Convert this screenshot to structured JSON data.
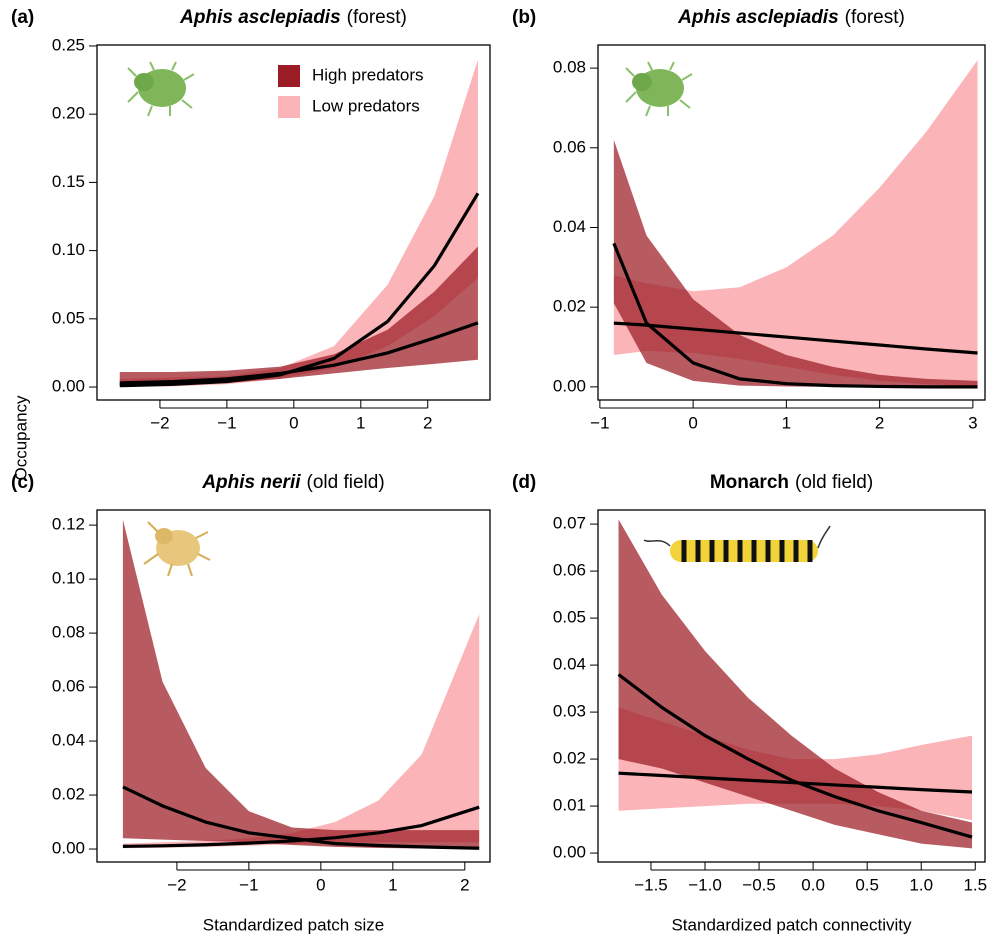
{
  "y_label": "Occupancy",
  "chart_data": [
    {
      "type": "band",
      "panel_label": "(a)",
      "title": {
        "species": "Aphis asclepiadis",
        "habitat": "(forest)"
      },
      "title_italic": true,
      "legend": "top-right",
      "band_opacity": 0.72,
      "x": [
        -2.6,
        -1.8,
        -1,
        -0.2,
        0.6,
        1.4,
        2.1,
        2.75
      ],
      "series": [
        {
          "name": "Low predators",
          "color": "#fbb4b8",
          "values": [
            0.001,
            0.002,
            0.004,
            0.009,
            0.021,
            0.048,
            0.089,
            0.142
          ],
          "lower": [
            0.0002,
            0.0005,
            0.002,
            0.006,
            0.014,
            0.03,
            0.052,
            0.08
          ],
          "upper": [
            0.006,
            0.007,
            0.008,
            0.014,
            0.03,
            0.075,
            0.14,
            0.24
          ]
        },
        {
          "name": "High predators",
          "color": "#9b1c24",
          "values": [
            0.003,
            0.004,
            0.006,
            0.01,
            0.016,
            0.025,
            0.036,
            0.047
          ],
          "lower": [
            0.001,
            0.0015,
            0.003,
            0.006,
            0.01,
            0.014,
            0.017,
            0.02
          ],
          "upper": [
            0.011,
            0.011,
            0.012,
            0.015,
            0.024,
            0.042,
            0.07,
            0.103
          ]
        }
      ],
      "xlim": [
        -2.94,
        2.93
      ],
      "ylim": [
        -0.0095,
        0.2507
      ],
      "xticks": [
        {
          "value": -2,
          "label": "−2"
        },
        {
          "value": -1,
          "label": "−1"
        },
        0,
        1,
        2
      ],
      "yticks": [
        {
          "value": 0,
          "label": "0.00"
        },
        {
          "value": 0.05,
          "label": "0.05"
        },
        {
          "value": 0.1,
          "label": "0.10"
        },
        {
          "value": 0.15,
          "label": "0.15"
        },
        {
          "value": 0.2,
          "label": "0.20"
        },
        {
          "value": 0.25,
          "label": "0.25"
        }
      ]
    },
    {
      "type": "band",
      "panel_label": "(b)",
      "title": {
        "species": "Aphis asclepiadis",
        "habitat": "(forest)"
      },
      "title_italic": true,
      "band_opacity": 0.72,
      "x": [
        -0.85,
        -0.5,
        0,
        0.5,
        1,
        1.5,
        2,
        2.5,
        3.05
      ],
      "series": [
        {
          "name": "Low predators",
          "color": "#fbb4b8",
          "values": [
            0.016,
            0.0155,
            0.0145,
            0.0135,
            0.0125,
            0.0115,
            0.0105,
            0.0095,
            0.0085
          ],
          "lower": [
            0.008,
            0.009,
            0.0085,
            0.007,
            0.005,
            0.003,
            0.0015,
            0.0007,
            0.0002
          ],
          "upper": [
            0.028,
            0.026,
            0.024,
            0.025,
            0.03,
            0.038,
            0.05,
            0.064,
            0.082
          ]
        },
        {
          "name": "High predators",
          "color": "#9b1c24",
          "values": [
            0.036,
            0.016,
            0.006,
            0.002,
            0.0008,
            0.0003,
            0.0001,
            0,
            0
          ],
          "lower": [
            0.021,
            0.006,
            0.0015,
            0.0003,
            0.0001,
            0,
            0,
            0,
            0
          ],
          "upper": [
            0.062,
            0.038,
            0.022,
            0.013,
            0.008,
            0.005,
            0.003,
            0.002,
            0.0015
          ]
        }
      ],
      "xlim": [
        -1.02,
        3.13
      ],
      "ylim": [
        -0.0033,
        0.0858
      ],
      "xticks": [
        {
          "value": -1,
          "label": "−1"
        },
        0,
        1,
        2,
        3
      ],
      "yticks": [
        {
          "value": 0,
          "label": "0.00"
        },
        {
          "value": 0.02,
          "label": "0.02"
        },
        {
          "value": 0.04,
          "label": "0.04"
        },
        {
          "value": 0.06,
          "label": "0.06"
        },
        {
          "value": 0.08,
          "label": "0.08"
        }
      ]
    },
    {
      "type": "band",
      "panel_label": "(c)",
      "title": {
        "species": "Aphis nerii",
        "habitat": "(old field)"
      },
      "title_italic": true,
      "band_opacity": 0.72,
      "x_label": "Standardized patch size",
      "x": [
        -2.75,
        -2.2,
        -1.6,
        -1,
        -0.4,
        0.2,
        0.8,
        1.4,
        2.2
      ],
      "series": [
        {
          "name": "Low predators",
          "color": "#fbb4b8",
          "values": [
            0.001,
            0.0012,
            0.0016,
            0.0022,
            0.003,
            0.0042,
            0.006,
            0.0087,
            0.0155
          ],
          "lower": [
            0.0003,
            0.0005,
            0.0008,
            0.0012,
            0.0018,
            0.0022,
            0.0025,
            0.0025,
            0.0025
          ],
          "upper": [
            0.002,
            0.0025,
            0.003,
            0.004,
            0.006,
            0.01,
            0.018,
            0.035,
            0.087
          ]
        },
        {
          "name": "High predators",
          "color": "#9b1c24",
          "values": [
            0.023,
            0.016,
            0.01,
            0.006,
            0.004,
            0.002,
            0.0013,
            0.0008,
            0.0003
          ],
          "lower": [
            0.004,
            0.0035,
            0.003,
            0.0025,
            0.0015,
            0.0008,
            0.0004,
            0.0002,
            0.0001
          ],
          "upper": [
            0.122,
            0.062,
            0.03,
            0.014,
            0.008,
            0.007,
            0.007,
            0.007,
            0.007
          ]
        }
      ],
      "xlim": [
        -3.11,
        2.35
      ],
      "ylim": [
        -0.0048,
        0.1256
      ],
      "xticks": [
        {
          "value": -2,
          "label": "−2"
        },
        {
          "value": -1,
          "label": "−1"
        },
        0,
        1,
        2
      ],
      "yticks": [
        {
          "value": 0,
          "label": "0.00"
        },
        {
          "value": 0.02,
          "label": "0.02"
        },
        {
          "value": 0.04,
          "label": "0.04"
        },
        {
          "value": 0.06,
          "label": "0.06"
        },
        {
          "value": 0.08,
          "label": "0.08"
        },
        {
          "value": 0.1,
          "label": "0.10"
        },
        {
          "value": 0.12,
          "label": "0.12"
        }
      ]
    },
    {
      "type": "band",
      "panel_label": "(d)",
      "title": {
        "species": "Monarch",
        "habitat": "(old field)"
      },
      "title_italic": false,
      "band_opacity": 0.72,
      "x_label": "Standardized patch connectivity",
      "x": [
        -1.8,
        -1.4,
        -1,
        -0.6,
        -0.2,
        0.2,
        0.6,
        1,
        1.47
      ],
      "series": [
        {
          "name": "Low predators",
          "color": "#fbb4b8",
          "values": [
            0.017,
            0.0165,
            0.016,
            0.0155,
            0.015,
            0.0145,
            0.014,
            0.0135,
            0.013
          ],
          "lower": [
            0.009,
            0.0095,
            0.01,
            0.0105,
            0.0105,
            0.0105,
            0.01,
            0.009,
            0.007
          ],
          "upper": [
            0.031,
            0.028,
            0.025,
            0.022,
            0.02,
            0.02,
            0.021,
            0.023,
            0.025
          ]
        },
        {
          "name": "High predators",
          "color": "#9b1c24",
          "values": [
            0.038,
            0.031,
            0.025,
            0.02,
            0.0155,
            0.012,
            0.009,
            0.0065,
            0.0034
          ],
          "lower": [
            0.02,
            0.018,
            0.015,
            0.012,
            0.009,
            0.006,
            0.004,
            0.002,
            0.001
          ],
          "upper": [
            0.071,
            0.055,
            0.043,
            0.033,
            0.025,
            0.018,
            0.013,
            0.009,
            0.0065
          ]
        }
      ],
      "xlim": [
        -1.99,
        1.59
      ],
      "ylim": [
        -0.0019,
        0.073
      ],
      "xticks": [
        {
          "value": -1.5,
          "label": "−1.5"
        },
        {
          "value": -1,
          "label": "−1.0"
        },
        {
          "value": -0.5,
          "label": "−0.5"
        },
        {
          "value": 0,
          "label": "0.0"
        },
        0.5,
        {
          "value": 1,
          "label": "1.0"
        },
        1.5
      ],
      "yticks": [
        {
          "value": 0,
          "label": "0.00"
        },
        {
          "value": 0.01,
          "label": "0.01"
        },
        {
          "value": 0.02,
          "label": "0.02"
        },
        {
          "value": 0.03,
          "label": "0.03"
        },
        {
          "value": 0.04,
          "label": "0.04"
        },
        {
          "value": 0.05,
          "label": "0.05"
        },
        {
          "value": 0.06,
          "label": "0.06"
        },
        {
          "value": 0.07,
          "label": "0.07"
        }
      ]
    }
  ]
}
